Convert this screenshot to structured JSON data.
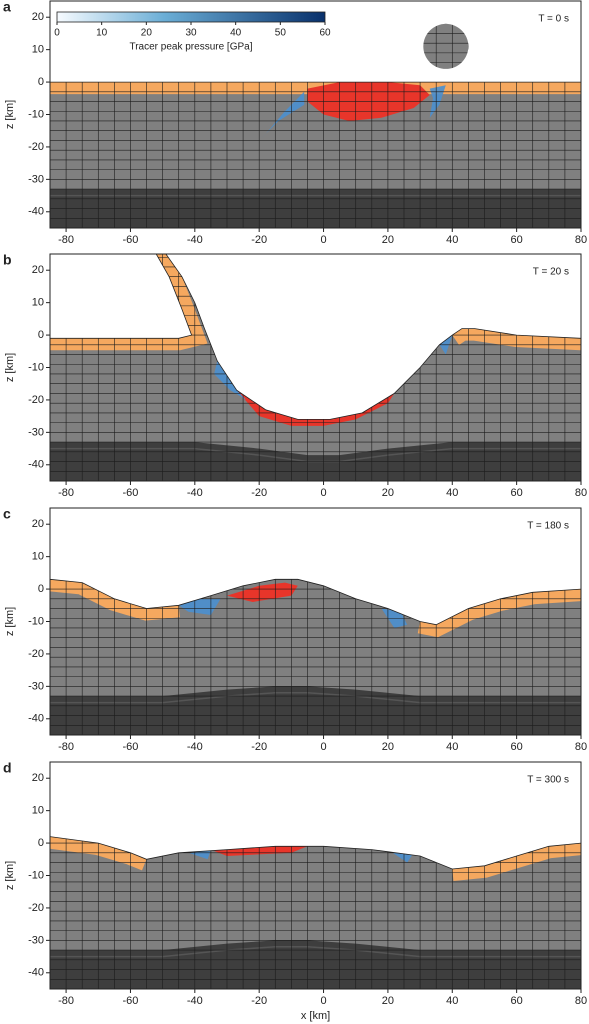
{
  "chart_data": [
    {
      "type": "field",
      "panel": "a",
      "annotation": "T = 0 s",
      "xlim": [
        -85,
        80
      ],
      "xticks": [
        -80,
        -60,
        -40,
        -20,
        0,
        20,
        40,
        60,
        80
      ],
      "ylim": [
        -45,
        25
      ],
      "yticks": [
        -40,
        -30,
        -20,
        -10,
        0,
        10,
        20
      ],
      "ylabel": "z [km]",
      "colorbar": {
        "label": "Tracer peak pressure [GPa]",
        "lim": [
          0,
          60
        ],
        "ticks": [
          0,
          10,
          20,
          30,
          40,
          50,
          60
        ]
      }
    },
    {
      "type": "field",
      "panel": "b",
      "annotation": "T = 20 s",
      "xlim": [
        -85,
        80
      ],
      "xticks": [
        -80,
        -60,
        -40,
        -20,
        0,
        20,
        40,
        60,
        80
      ],
      "ylim": [
        -45,
        25
      ],
      "yticks": [
        -40,
        -30,
        -20,
        -10,
        0,
        10,
        20
      ],
      "ylabel": "z [km]"
    },
    {
      "type": "field",
      "panel": "c",
      "annotation": "T = 180 s",
      "xlim": [
        -85,
        80
      ],
      "xticks": [
        -80,
        -60,
        -40,
        -20,
        0,
        20,
        40,
        60,
        80
      ],
      "ylim": [
        -45,
        25
      ],
      "yticks": [
        -40,
        -30,
        -20,
        -10,
        0,
        10,
        20
      ],
      "ylabel": "z [km]"
    },
    {
      "type": "field",
      "panel": "d",
      "annotation": "T = 300 s",
      "xlim": [
        -85,
        80
      ],
      "xticks": [
        -80,
        -60,
        -40,
        -20,
        0,
        20,
        40,
        60,
        80
      ],
      "ylim": [
        -45,
        25
      ],
      "yticks": [
        -40,
        -30,
        -20,
        -10,
        0,
        10,
        20
      ],
      "ylabel": "z [km]",
      "xlabel": "x [km]"
    }
  ]
}
